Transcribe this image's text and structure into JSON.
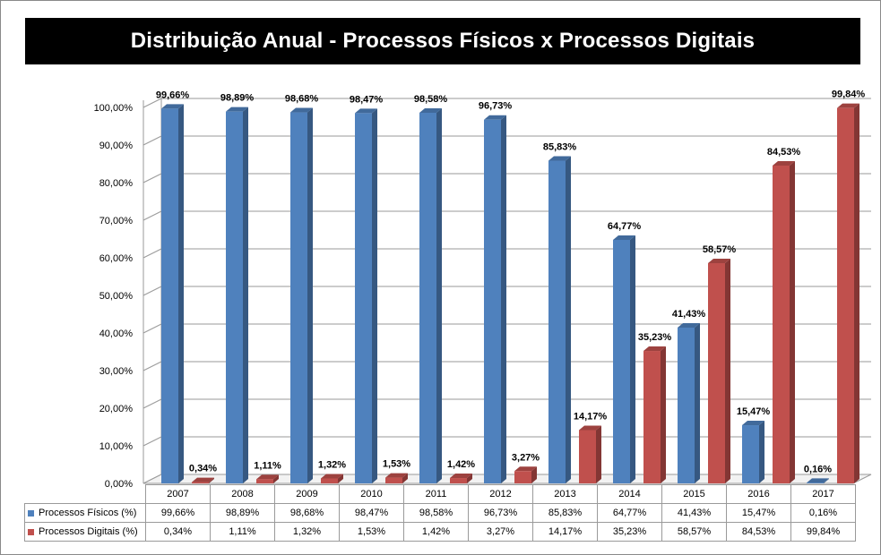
{
  "chart_data": {
    "type": "bar",
    "title": "Distribuição Anual  - Processos Físicos x Processos Digitais",
    "categories": [
      "2007",
      "2008",
      "2009",
      "2010",
      "2011",
      "2012",
      "2013",
      "2014",
      "2015",
      "2016",
      "2017"
    ],
    "series": [
      {
        "name": "Processos Físicos (%)",
        "color": "#4f81bd",
        "values": [
          99.66,
          98.89,
          98.68,
          98.47,
          98.58,
          96.73,
          85.83,
          64.77,
          41.43,
          15.47,
          0.16
        ],
        "labels": [
          "99,66%",
          "98,89%",
          "98,68%",
          "98,47%",
          "98,58%",
          "96,73%",
          "85,83%",
          "64,77%",
          "41,43%",
          "15,47%",
          "0,16%"
        ]
      },
      {
        "name": "Processos Digitais (%)",
        "color": "#c0504d",
        "values": [
          0.34,
          1.11,
          1.32,
          1.53,
          1.42,
          3.27,
          14.17,
          35.23,
          58.57,
          84.53,
          99.84
        ],
        "labels": [
          "0,34%",
          "1,11%",
          "1,32%",
          "1,53%",
          "1,42%",
          "3,27%",
          "14,17%",
          "35,23%",
          "58,57%",
          "84,53%",
          "99,84%"
        ]
      }
    ],
    "yticks": [
      "0,00%",
      "10,00%",
      "20,00%",
      "30,00%",
      "40,00%",
      "50,00%",
      "60,00%",
      "70,00%",
      "80,00%",
      "90,00%",
      "100,00%"
    ],
    "ylim": [
      0,
      100
    ],
    "grid": true,
    "legend": "data-table"
  }
}
